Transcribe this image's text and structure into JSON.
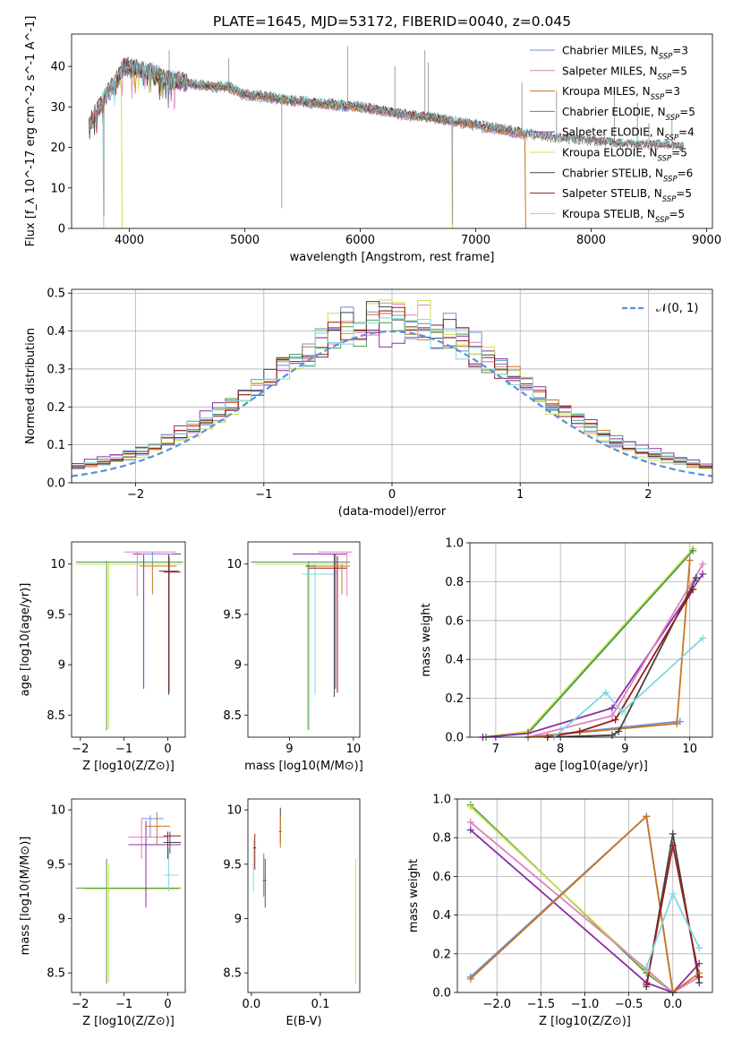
{
  "title": "PLATE=1645, MJD=53172, FIBERID=0040, z=0.045",
  "colors": {
    "Chabrier MILES": "#6f8fd6",
    "Salpeter MILES": "#e37fc0",
    "Kroupa MILES": "#c8761f",
    "Chabrier ELODIE": "#4a9a4a",
    "Salpeter ELODIE": "#8a2fa8",
    "Kroupa ELODIE": "#c9e04f",
    "Chabrier STELIB": "#444444",
    "Salpeter STELIB": "#9b1c1c",
    "Kroupa STELIB": "#7fd8e0"
  },
  "chart_data": [
    {
      "id": "spectrum",
      "type": "line",
      "xlabel": "wavelength [Angstrom, rest frame]",
      "ylabel": "Flux [f_λ 10^-17 erg cm^-2 s^-1 A^-1]",
      "xlim": [
        3500,
        9050
      ],
      "ylim": [
        0,
        48
      ],
      "xticks": [
        4000,
        5000,
        6000,
        7000,
        8000,
        9000
      ],
      "yticks": [
        0,
        10,
        20,
        30,
        40
      ],
      "legend_position": "upper right",
      "observed": {
        "name": "data",
        "color": "#888888",
        "x": [
          3650,
          3700,
          3800,
          3900,
          3950,
          4000,
          4100,
          4200,
          4300,
          4500,
          4700,
          4850,
          5000,
          5200,
          5400,
          5600,
          5800,
          6000,
          6200,
          6400,
          6600,
          6800,
          7000,
          7200,
          7400,
          7600,
          7800,
          8000,
          8200,
          8400,
          8600,
          8800
        ],
        "y": [
          26,
          28,
          33,
          37,
          40,
          40,
          39,
          38.5,
          37,
          36,
          35,
          35,
          33,
          32.5,
          31.5,
          31,
          30.5,
          30,
          29,
          28,
          27.5,
          26.5,
          25.5,
          24.5,
          23.5,
          22.5,
          22,
          21.5,
          21,
          20.5,
          20.5,
          20
        ],
        "spikes": [
          [
            3780,
            3
          ],
          [
            4345,
            44
          ],
          [
            4860,
            42
          ],
          [
            5320,
            5
          ],
          [
            5890,
            45
          ],
          [
            6300,
            40
          ],
          [
            6560,
            44
          ],
          [
            6590,
            41
          ],
          [
            6800,
            1
          ],
          [
            7400,
            36
          ],
          [
            7700,
            34
          ],
          [
            8200,
            34
          ],
          [
            8400,
            31
          ],
          [
            8500,
            26
          ],
          [
            8700,
            27
          ]
        ]
      },
      "series": [
        {
          "name": "Chabrier MILES",
          "legend": "Chabrier MILES, N_SSP=3",
          "x": [
            3650,
            7450
          ],
          "color_key": "Chabrier MILES"
        },
        {
          "name": "Salpeter MILES",
          "legend": "Salpeter MILES, N_SSP=5",
          "x": [
            3650,
            7450
          ],
          "color_key": "Salpeter MILES"
        },
        {
          "name": "Kroupa MILES",
          "legend": "Kroupa MILES, N_SSP=3",
          "x": [
            3650,
            7450
          ],
          "color_key": "Kroupa MILES"
        },
        {
          "name": "Chabrier ELODIE",
          "legend": "Chabrier ELODIE, N_SSP=5",
          "x": [
            3900,
            6800
          ],
          "color_key": "Chabrier ELODIE"
        },
        {
          "name": "Salpeter ELODIE",
          "legend": "Salpeter ELODIE, N_SSP=4",
          "x": [
            3900,
            6800
          ],
          "color_key": "Salpeter ELODIE"
        },
        {
          "name": "Kroupa ELODIE",
          "legend": "Kroupa ELODIE, N_SSP=5",
          "x": [
            3900,
            6800
          ],
          "color_key": "Kroupa ELODIE"
        },
        {
          "name": "Chabrier STELIB",
          "legend": "Chabrier STELIB, N_SSP=6",
          "x": [
            3650,
            8800
          ],
          "color_key": "Chabrier STELIB"
        },
        {
          "name": "Salpeter STELIB",
          "legend": "Salpeter STELIB, N_SSP=5",
          "x": [
            3650,
            8800
          ],
          "color_key": "Salpeter STELIB"
        },
        {
          "name": "Kroupa STELIB",
          "legend": "Kroupa STELIB, N_SSP=5",
          "x": [
            3650,
            8800
          ],
          "color_key": "Kroupa STELIB"
        }
      ]
    },
    {
      "id": "residuals",
      "type": "line",
      "xlabel": "(data-model)/error",
      "ylabel": "Normed distribution",
      "xlim": [
        -2.5,
        2.5
      ],
      "ylim": [
        0,
        0.51
      ],
      "xticks": [
        -2,
        -1,
        0,
        1,
        2
      ],
      "yticks": [
        0.0,
        0.1,
        0.2,
        0.3,
        0.4,
        0.5
      ],
      "grid": true,
      "legend_position": "upper right",
      "normal": {
        "name": "N(0,1)",
        "legend": "𝒩(0, 1)",
        "mean": 0,
        "sigma": 1,
        "color": "#5b8fd9"
      },
      "bin_width": 0.1
    },
    {
      "id": "age-vs-Z",
      "type": "scatter",
      "xlabel": "Z [log10(Z/Z⊙)]",
      "ylabel": "age [log10(age/yr)]",
      "xlim": [
        -2.2,
        0.4
      ],
      "ylim": [
        8.28,
        10.22
      ],
      "xticks": [
        -2,
        -1,
        0
      ],
      "yticks": [
        8.5,
        9.0,
        9.5,
        10.0
      ]
    },
    {
      "id": "age-vs-mass",
      "type": "scatter",
      "xlabel": "mass [log10(M/M⊙)]",
      "ylabel": "",
      "xlim": [
        8.35,
        10.1
      ],
      "ylim": [
        8.28,
        10.22
      ],
      "xticks": [
        9,
        10
      ],
      "yticks": [
        8.5,
        9.0,
        9.5,
        10.0
      ]
    },
    {
      "id": "weight-vs-age",
      "type": "line",
      "xlabel": "age [log10(age/yr)]",
      "ylabel": "mass weight",
      "xlim": [
        6.6,
        10.35
      ],
      "ylim": [
        0,
        1
      ],
      "xticks": [
        7,
        8,
        9,
        10
      ],
      "yticks": [
        0.0,
        0.2,
        0.4,
        0.6,
        0.8,
        1.0
      ],
      "grid": true,
      "series": [
        {
          "name": "Kroupa ELODIE",
          "x": [
            6.8,
            7.5,
            10.05
          ],
          "y": [
            0.0,
            0.03,
            0.97
          ]
        },
        {
          "name": "Chabrier ELODIE",
          "x": [
            6.85,
            7.5,
            10.05
          ],
          "y": [
            0.0,
            0.02,
            0.96
          ]
        },
        {
          "name": "Salpeter ELODIE",
          "x": [
            6.8,
            7.5,
            8.8,
            10.2
          ],
          "y": [
            0.0,
            0.02,
            0.15,
            0.84
          ]
        },
        {
          "name": "Salpeter MILES",
          "x": [
            7.5,
            8.8,
            10.2
          ],
          "y": [
            0.0,
            0.11,
            0.89
          ]
        },
        {
          "name": "Chabrier MILES",
          "x": [
            7.5,
            9.8,
            9.85
          ],
          "y": [
            0.0,
            0.08,
            0.08
          ]
        },
        {
          "name": "Kroupa MILES",
          "x": [
            7.5,
            9.8,
            10.0
          ],
          "y": [
            0.0,
            0.07,
            0.91
          ]
        },
        {
          "name": "Chabrier STELIB",
          "x": [
            7.8,
            8.8,
            8.9,
            10.1
          ],
          "y": [
            0.0,
            0.01,
            0.03,
            0.82
          ]
        },
        {
          "name": "Salpeter STELIB",
          "x": [
            7.8,
            8.3,
            8.85,
            10.05
          ],
          "y": [
            0.0,
            0.03,
            0.09,
            0.76
          ]
        },
        {
          "name": "Kroupa STELIB",
          "x": [
            7.9,
            8.7,
            8.95,
            10.2
          ],
          "y": [
            0.0,
            0.23,
            0.13,
            0.51
          ]
        }
      ]
    },
    {
      "id": "mass-vs-Z",
      "type": "scatter",
      "xlabel": "Z [log10(Z/Z⊙)]",
      "ylabel": "mass [log10(M/M⊙)]",
      "xlim": [
        -2.2,
        0.4
      ],
      "ylim": [
        8.32,
        10.1
      ],
      "xticks": [
        -2,
        -1,
        0
      ],
      "yticks": [
        8.5,
        9.0,
        9.5,
        10.0
      ]
    },
    {
      "id": "mass-vs-EBV",
      "type": "scatter",
      "xlabel": "E(B-V)",
      "ylabel": "",
      "xlim": [
        -0.005,
        0.157
      ],
      "ylim": [
        8.32,
        10.1
      ],
      "xticks": [
        0.0,
        0.1
      ],
      "yticks": [
        8.5,
        9.0,
        9.5,
        10.0
      ]
    },
    {
      "id": "weight-vs-Z",
      "type": "line",
      "xlabel": "Z [log10(Z/Z⊙)]",
      "ylabel": "mass weight",
      "xlim": [
        -2.45,
        0.45
      ],
      "ylim": [
        0,
        1
      ],
      "xticks": [
        -2.0,
        -1.5,
        -1.0,
        -0.5,
        0.0
      ],
      "yticks": [
        0.0,
        0.2,
        0.4,
        0.6,
        0.8,
        1.0
      ],
      "grid": true,
      "series": [
        {
          "name": "Chabrier ELODIE",
          "x": [
            -2.3,
            -0.3,
            0.0
          ],
          "y": [
            0.97,
            0.1,
            0.0
          ]
        },
        {
          "name": "Kroupa ELODIE",
          "x": [
            -2.3,
            -0.3,
            0.0
          ],
          "y": [
            0.96,
            0.11,
            0.0
          ]
        },
        {
          "name": "Salpeter MILES",
          "x": [
            -2.3,
            -0.3,
            0.0,
            0.3
          ],
          "y": [
            0.88,
            0.12,
            0.0,
            0.08
          ]
        },
        {
          "name": "Salpeter ELODIE",
          "x": [
            -2.3,
            -0.3,
            0.0,
            0.3
          ],
          "y": [
            0.84,
            0.05,
            0.0,
            0.15
          ]
        },
        {
          "name": "Chabrier MILES",
          "x": [
            -2.3,
            -0.3,
            0.0
          ],
          "y": [
            0.08,
            0.91,
            0.0
          ]
        },
        {
          "name": "Kroupa MILES",
          "x": [
            -2.3,
            -0.3,
            0.0,
            0.3
          ],
          "y": [
            0.07,
            0.91,
            0.0,
            0.1
          ]
        },
        {
          "name": "Chabrier STELIB",
          "x": [
            -0.3,
            0.0,
            0.3
          ],
          "y": [
            0.03,
            0.82,
            0.05
          ]
        },
        {
          "name": "Salpeter STELIB",
          "x": [
            -0.3,
            0.0,
            0.3
          ],
          "y": [
            0.04,
            0.76,
            0.08
          ]
        },
        {
          "name": "Kroupa STELIB",
          "x": [
            -0.3,
            0.0,
            0.3
          ],
          "y": [
            0.13,
            0.51,
            0.23
          ]
        }
      ]
    }
  ]
}
